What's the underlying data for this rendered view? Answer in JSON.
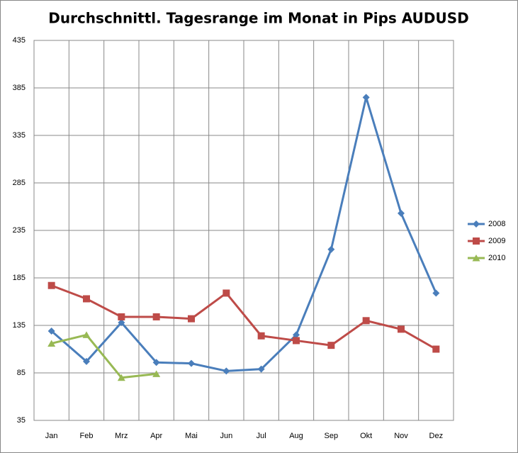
{
  "chart_data": {
    "type": "line",
    "title": "Durchschnittl. Tagesrange im Monat in Pips AUDUSD",
    "categories": [
      "Jan",
      "Feb",
      "Mrz",
      "Apr",
      "Mai",
      "Jun",
      "Jul",
      "Aug",
      "Sep",
      "Okt",
      "Nov",
      "Dez"
    ],
    "series": [
      {
        "name": "2008",
        "color": "#4a7ebb",
        "marker": "diamond",
        "values": [
          129,
          97,
          138,
          96,
          95,
          87,
          89,
          125,
          215,
          375,
          253,
          169
        ]
      },
      {
        "name": "2009",
        "color": "#be4b48",
        "marker": "square",
        "values": [
          177,
          163,
          144,
          144,
          142,
          169,
          124,
          119,
          114,
          140,
          131,
          110
        ]
      },
      {
        "name": "2010",
        "color": "#98b954",
        "marker": "triangle",
        "values": [
          116,
          125,
          80,
          84,
          null,
          null,
          null,
          null,
          null,
          null,
          null,
          null
        ]
      }
    ],
    "ylim": [
      35,
      435
    ],
    "yticks": [
      35,
      85,
      135,
      185,
      235,
      285,
      335,
      385,
      435
    ],
    "grid": true,
    "legend": "right"
  }
}
